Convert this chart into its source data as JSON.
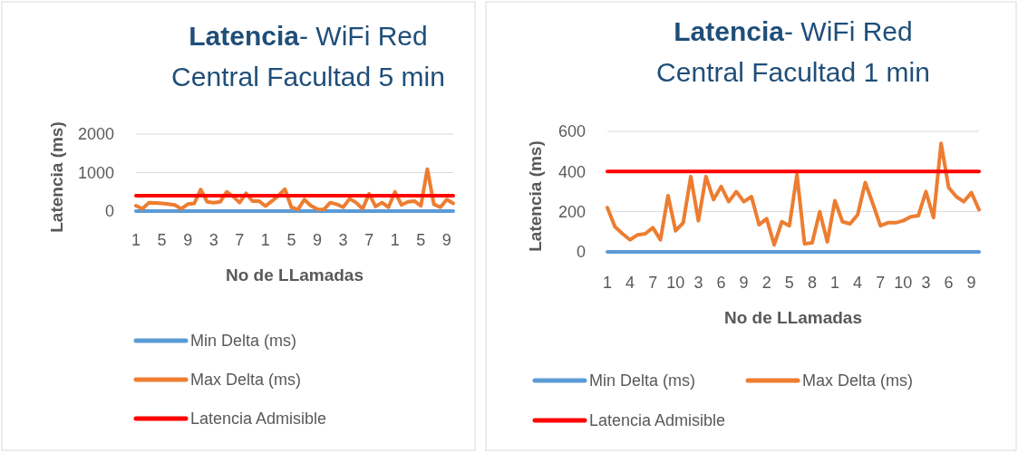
{
  "chart_data": [
    {
      "type": "line",
      "title": "Latencia- WiFi Red Central Facultad 5 min",
      "xlabel": "No de LLamadas",
      "ylabel": "Latencia (ms)",
      "categories": [
        "1",
        null,
        null,
        null,
        "5",
        null,
        null,
        null,
        "9",
        null,
        null,
        null,
        "3",
        null,
        null,
        null,
        "7",
        null,
        null,
        null,
        "1",
        null,
        null,
        null,
        "5",
        null,
        null,
        null,
        "9",
        null,
        null,
        null,
        "3",
        null,
        null,
        null,
        "7",
        null,
        null,
        null,
        "1",
        null,
        null,
        null,
        "5",
        null,
        null,
        null,
        "9",
        null
      ],
      "ylim": [
        0,
        2000
      ],
      "yticks": [
        0,
        1000,
        2000
      ],
      "grid": "y",
      "legend": "bottom",
      "series": [
        {
          "name": "Min Delta (ms)",
          "color": "#5b9bd5",
          "values": [
            0,
            0,
            0,
            0,
            0,
            0,
            0,
            0,
            0,
            0,
            0,
            0,
            0,
            0,
            0,
            0,
            0,
            0,
            0,
            0,
            0,
            0,
            0,
            0,
            0,
            0,
            0,
            0,
            0,
            0,
            0,
            0,
            0,
            0,
            0,
            0,
            0,
            0,
            0,
            0,
            0,
            0,
            0,
            0,
            0,
            0,
            0,
            0,
            0,
            0
          ]
        },
        {
          "name": "Max Delta (ms)",
          "color": "#ed7d31",
          "values": [
            140,
            60,
            220,
            210,
            200,
            180,
            160,
            60,
            180,
            200,
            560,
            240,
            220,
            240,
            500,
            380,
            220,
            460,
            260,
            260,
            130,
            260,
            400,
            570,
            100,
            40,
            300,
            140,
            50,
            40,
            220,
            180,
            100,
            320,
            220,
            60,
            450,
            120,
            220,
            100,
            500,
            160,
            240,
            260,
            140,
            1090,
            180,
            100,
            300,
            200
          ]
        },
        {
          "name": "Latencia Admisible",
          "color": "#ff0000",
          "values": [
            400,
            400,
            400,
            400,
            400,
            400,
            400,
            400,
            400,
            400,
            400,
            400,
            400,
            400,
            400,
            400,
            400,
            400,
            400,
            400,
            400,
            400,
            400,
            400,
            400,
            400,
            400,
            400,
            400,
            400,
            400,
            400,
            400,
            400,
            400,
            400,
            400,
            400,
            400,
            400,
            400,
            400,
            400,
            400,
            400,
            400,
            400,
            400,
            400,
            400
          ]
        }
      ]
    },
    {
      "type": "line",
      "title": "Latencia- WiFi Red Central Facultad 1 min",
      "xlabel": "No de LLamadas",
      "ylabel": "Latencia (ms)",
      "categories": [
        "1",
        null,
        null,
        "4",
        null,
        null,
        "7",
        null,
        null,
        "10",
        null,
        null,
        "3",
        null,
        null,
        "6",
        null,
        null,
        "9",
        null,
        null,
        "2",
        null,
        null,
        "5",
        null,
        null,
        "8",
        null,
        null,
        "1",
        null,
        null,
        "4",
        null,
        null,
        "7",
        null,
        null,
        "10",
        null,
        null,
        "3",
        null,
        null,
        "6",
        null,
        null,
        "9",
        null
      ],
      "ylim": [
        0,
        600
      ],
      "yticks": [
        0,
        200,
        400,
        600
      ],
      "grid": "y",
      "legend": "bottom",
      "series": [
        {
          "name": "Min Delta (ms)",
          "color": "#5b9bd5",
          "values": [
            0,
            0,
            0,
            0,
            0,
            0,
            0,
            0,
            0,
            0,
            0,
            0,
            0,
            0,
            0,
            0,
            0,
            0,
            0,
            0,
            0,
            0,
            0,
            0,
            0,
            0,
            0,
            0,
            0,
            0,
            0,
            0,
            0,
            0,
            0,
            0,
            0,
            0,
            0,
            0,
            0,
            0,
            0,
            0,
            0,
            0,
            0,
            0,
            0,
            0
          ]
        },
        {
          "name": "Max Delta (ms)",
          "color": "#ed7d31",
          "values": [
            220,
            125,
            90,
            60,
            85,
            90,
            120,
            60,
            280,
            105,
            145,
            375,
            155,
            375,
            260,
            325,
            250,
            300,
            250,
            275,
            135,
            165,
            35,
            150,
            130,
            385,
            40,
            45,
            200,
            50,
            255,
            150,
            140,
            185,
            345,
            240,
            130,
            145,
            145,
            155,
            175,
            180,
            300,
            170,
            540,
            320,
            275,
            250,
            295,
            210
          ]
        },
        {
          "name": "Latencia Admisible",
          "color": "#ff0000",
          "values": [
            400,
            400,
            400,
            400,
            400,
            400,
            400,
            400,
            400,
            400,
            400,
            400,
            400,
            400,
            400,
            400,
            400,
            400,
            400,
            400,
            400,
            400,
            400,
            400,
            400,
            400,
            400,
            400,
            400,
            400,
            400,
            400,
            400,
            400,
            400,
            400,
            400,
            400,
            400,
            400,
            400,
            400,
            400,
            400,
            400,
            400,
            400,
            400,
            400,
            400
          ]
        }
      ]
    }
  ]
}
